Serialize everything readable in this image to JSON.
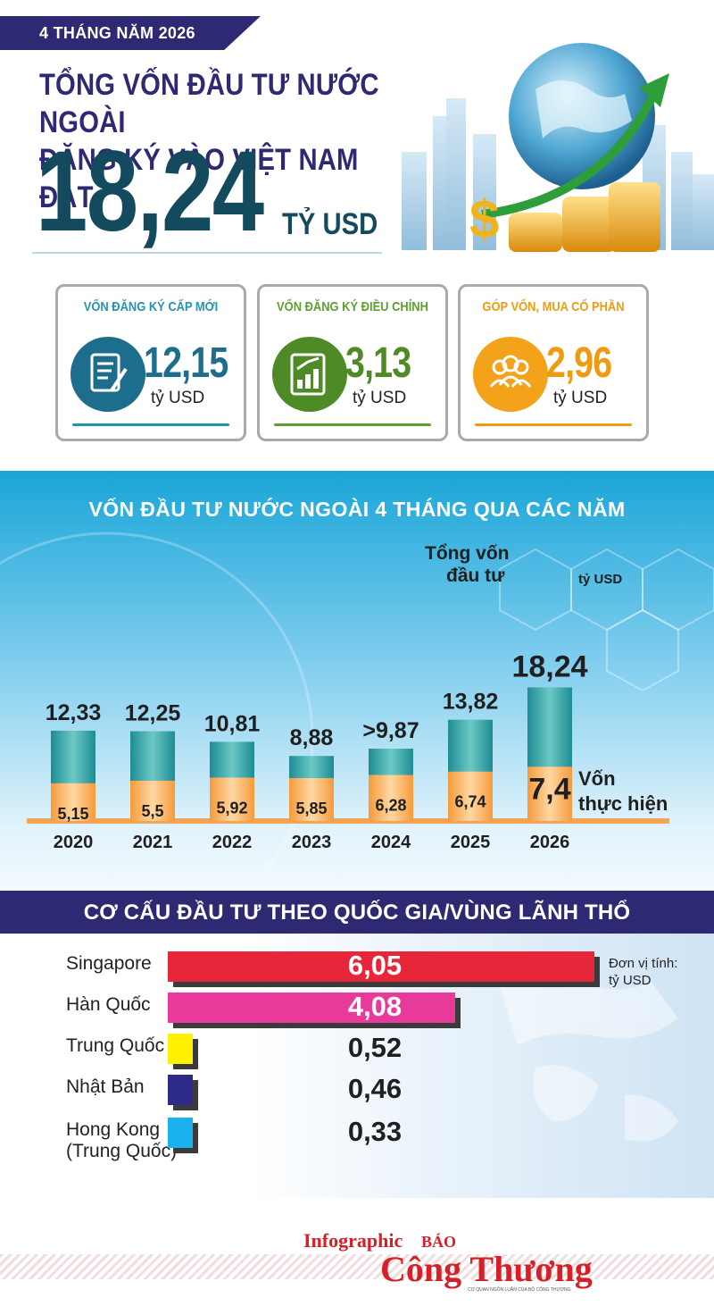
{
  "header": {
    "period_badge": "4 THÁNG NĂM 2026",
    "headline_line1": "TỔNG VỐN ĐẦU TƯ NƯỚC NGOÀI",
    "headline_line2": "ĐĂNG KÝ VÀO VIỆT NAM ĐẠT",
    "total_value": "18,24",
    "total_unit": "TỶ USD"
  },
  "cards": [
    {
      "title": "VỐN ĐĂNG KÝ CẤP MỚI",
      "value": "12,15",
      "unit": "tỷ USD",
      "icon": "document-pen-icon",
      "color": "#2493b0"
    },
    {
      "title": "VỐN ĐĂNG KÝ ĐIỀU CHỈNH",
      "value": "3,13",
      "unit": "tỷ USD",
      "icon": "growth-chart-icon",
      "color": "#5e9e2f"
    },
    {
      "title": "GÓP VỐN, MUA CỔ PHẦN",
      "value": "2,96",
      "unit": "tỷ USD",
      "icon": "people-group-icon",
      "color": "#f09a12"
    }
  ],
  "chart_data": [
    {
      "type": "bar",
      "title": "VỐN ĐẦU TƯ NƯỚC NGOÀI 4 THÁNG QUA CÁC NĂM",
      "categories": [
        "2020",
        "2021",
        "2022",
        "2023",
        "2024",
        "2025",
        "2026"
      ],
      "series": [
        {
          "name": "Tổng vốn đầu tư",
          "values": [
            12.33,
            12.25,
            10.81,
            8.88,
            9.87,
            13.82,
            18.24
          ],
          "labels": [
            "12,33",
            "12,25",
            "10,81",
            "8,88",
            ">9,87",
            "13,82",
            "18,24"
          ],
          "color": "#2a9aa3"
        },
        {
          "name": "Vốn thực hiện",
          "values": [
            5.15,
            5.5,
            5.92,
            5.85,
            6.28,
            6.74,
            7.4
          ],
          "labels": [
            "5,15",
            "5,5",
            "5,92",
            "5,85",
            "6,28",
            "6,74",
            "7,4"
          ],
          "color": "#f7a955"
        }
      ],
      "annotations": {
        "total_label": "Tổng vốn đầu tư",
        "realized_label": "Vốn thực hiện",
        "unit": "tỷ USD"
      },
      "ylim": [
        0,
        20
      ]
    },
    {
      "type": "bar",
      "title": "CƠ CẤU ĐẦU TƯ THEO QUỐC GIA/VÙNG LÃNH THỔ",
      "orientation": "horizontal",
      "categories": [
        "Singapore",
        "Hàn Quốc",
        "Trung Quốc",
        "Nhật Bản",
        "Hong Kong (Trung Quốc)"
      ],
      "values": [
        6.05,
        4.08,
        0.52,
        0.46,
        0.33
      ],
      "labels": [
        "6,05",
        "4,08",
        "0,52",
        "0,46",
        "0,33"
      ],
      "colors": [
        "#e8263a",
        "#e83a9a",
        "#fff200",
        "#2d2a8a",
        "#1ab2ee"
      ],
      "unit_note_line1": "Đơn vị tính:",
      "unit_note_line2": "tỷ USD"
    }
  ],
  "countries": {
    "hk_line1": "Hong Kong",
    "hk_line2": "(Trung Quốc)"
  },
  "footer": {
    "infographic": "Infographic",
    "brand_top": "BÁO",
    "brand_name": "Công Thương",
    "brand_tagline": "CƠ QUAN NGÔN LUẬN CỦA BỘ CÔNG THƯƠNG"
  },
  "colors": {
    "navy": "#2d2a73",
    "teal": "#134a5e",
    "bar_total": "#2a9aa3",
    "bar_realized": "#f7a955"
  }
}
